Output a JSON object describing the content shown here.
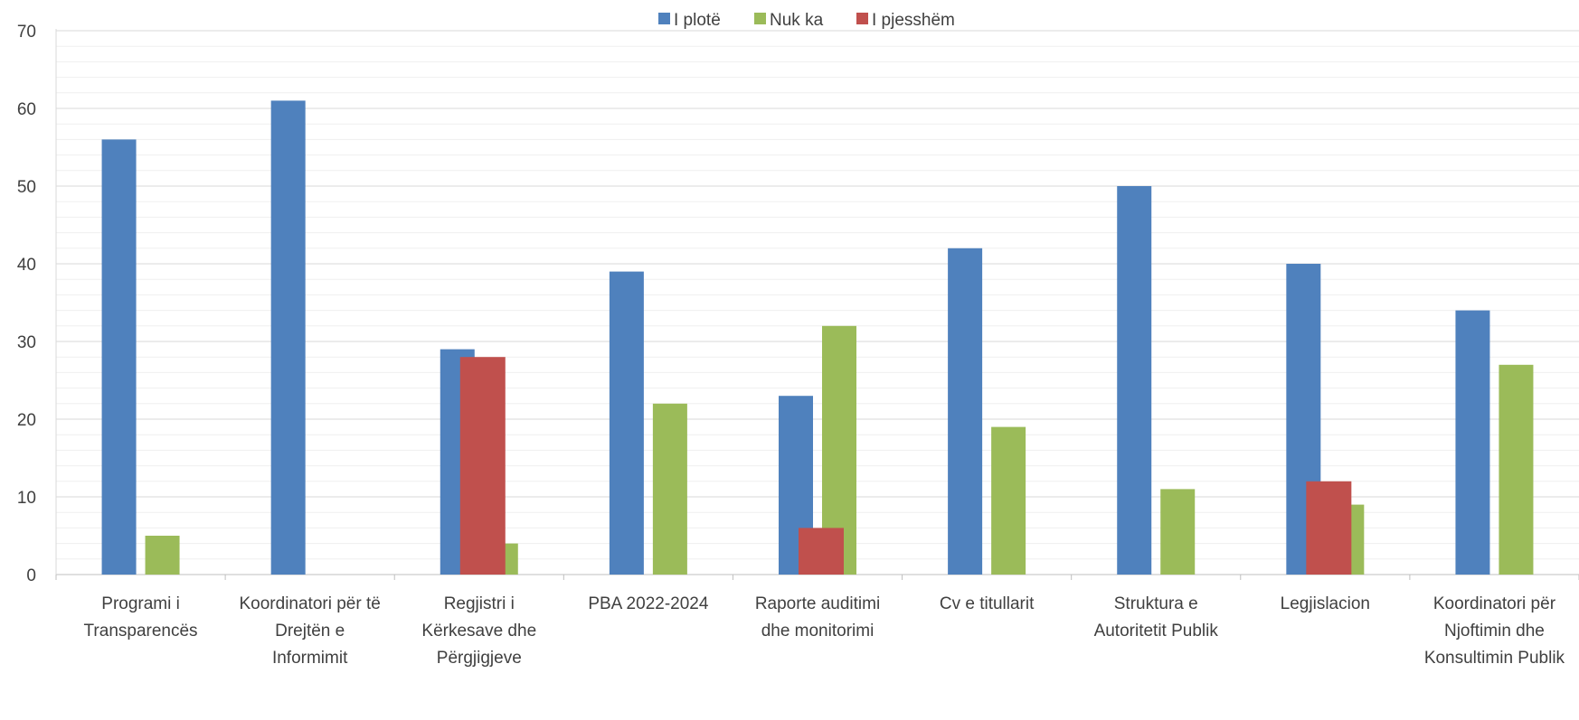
{
  "chart_data": {
    "type": "bar",
    "title": "",
    "xlabel": "",
    "ylabel": "",
    "ylim": [
      0,
      70
    ],
    "yticks": [
      0,
      10,
      20,
      30,
      40,
      50,
      60,
      70
    ],
    "grid": true,
    "legend_position": "top-center",
    "categories": [
      [
        "Programi i",
        "Transparencës"
      ],
      [
        "Koordinatori për të",
        "Drejtën e",
        "Informimit"
      ],
      [
        "Regjistri i",
        "Kërkesave dhe",
        "Përgjigjeve"
      ],
      [
        "PBA 2022-2024"
      ],
      [
        "Raporte auditimi",
        "dhe monitorimi"
      ],
      [
        "Cv e titullarit"
      ],
      [
        "Struktura e",
        "Autoritetit Publik"
      ],
      [
        "Legjislacion"
      ],
      [
        "Koordinatori për",
        "Njoftimin dhe",
        "Konsultimin Publik"
      ]
    ],
    "series": [
      {
        "name": "I plotë",
        "color": "#4F81BD",
        "values": [
          56,
          61,
          29,
          39,
          23,
          42,
          50,
          40,
          34
        ]
      },
      {
        "name": "Nuk ka",
        "color": "#9BBB59",
        "values": [
          5,
          null,
          4,
          22,
          32,
          19,
          11,
          9,
          27
        ]
      },
      {
        "name": "I pjesshëm",
        "color": "#C0504D",
        "values": [
          null,
          null,
          28,
          null,
          6,
          null,
          null,
          12,
          null
        ]
      }
    ]
  }
}
